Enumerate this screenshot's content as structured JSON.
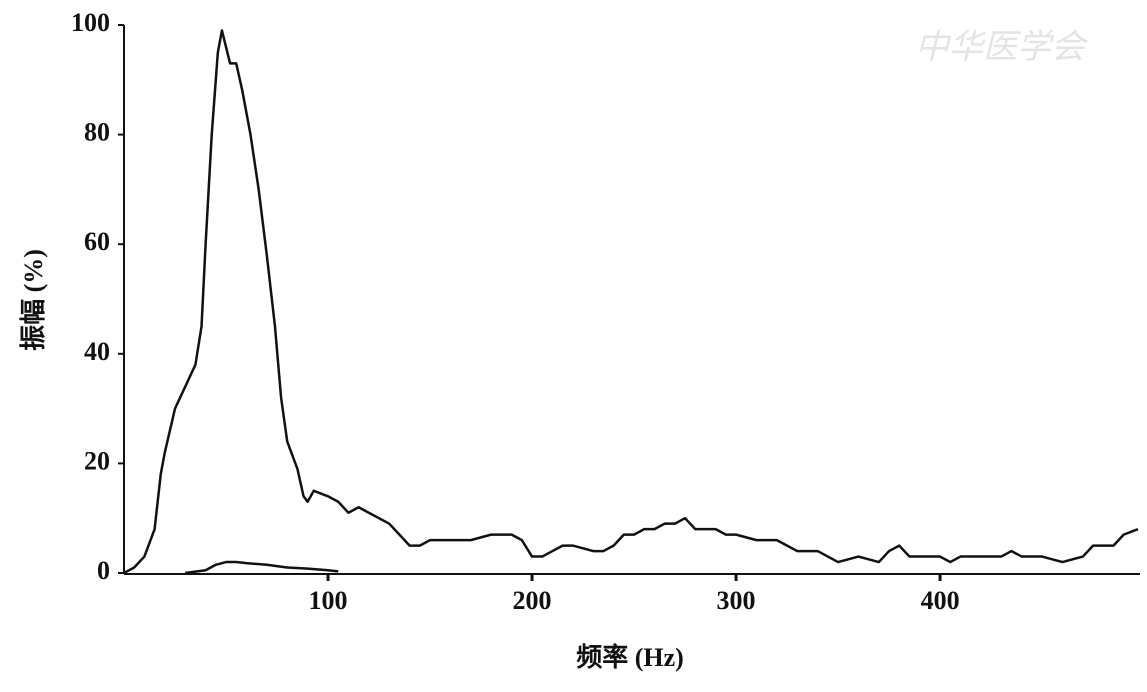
{
  "chart_data": {
    "type": "line",
    "xlabel": "频率 (Hz)",
    "ylabel": "振幅 (%)",
    "watermark": "中华医学会",
    "xlim": [
      0,
      498
    ],
    "ylim": [
      0,
      100
    ],
    "xticks": [
      100,
      200,
      300,
      400
    ],
    "yticks": [
      0,
      20,
      40,
      60,
      80,
      100
    ],
    "series": [
      {
        "color": "#111111",
        "x": [
          0,
          5,
          10,
          15,
          18,
          20,
          25,
          30,
          35,
          38,
          40,
          43,
          46,
          48,
          50,
          52,
          55,
          58,
          62,
          66,
          70,
          74,
          77,
          80,
          85,
          88,
          90,
          93,
          100,
          105,
          110,
          115,
          120,
          125,
          130,
          135,
          140,
          145,
          150,
          160,
          170,
          180,
          190,
          195,
          200,
          205,
          210,
          215,
          220,
          230,
          235,
          240,
          245,
          250,
          255,
          260,
          265,
          270,
          275,
          280,
          290,
          295,
          300,
          310,
          320,
          325,
          330,
          340,
          350,
          360,
          370,
          375,
          380,
          385,
          400,
          405,
          410,
          420,
          430,
          435,
          440,
          450,
          460,
          470,
          475,
          480,
          485,
          490,
          497
        ],
        "values": [
          0,
          1,
          3,
          8,
          18,
          22,
          30,
          34,
          38,
          45,
          60,
          80,
          95,
          99,
          96,
          93,
          93,
          88,
          80,
          70,
          58,
          45,
          32,
          24,
          19,
          14,
          13,
          15,
          14,
          13,
          11,
          12,
          11,
          10,
          9,
          7,
          5,
          5,
          6,
          6,
          6,
          7,
          7,
          6,
          3,
          3,
          4,
          5,
          5,
          4,
          4,
          5,
          7,
          7,
          8,
          8,
          9,
          9,
          10,
          8,
          8,
          7,
          7,
          6,
          6,
          5,
          4,
          4,
          2,
          3,
          2,
          4,
          5,
          3,
          3,
          2,
          3,
          3,
          3,
          4,
          3,
          3,
          2,
          3,
          5,
          5,
          5,
          7,
          8
        ]
      },
      {
        "color": "#111111",
        "x": [
          30,
          40,
          45,
          50,
          55,
          60,
          70,
          80,
          90,
          100,
          105
        ],
        "values": [
          0,
          0.5,
          1.5,
          2,
          2,
          1.8,
          1.5,
          1,
          0.8,
          0.5,
          0.3
        ]
      }
    ]
  }
}
